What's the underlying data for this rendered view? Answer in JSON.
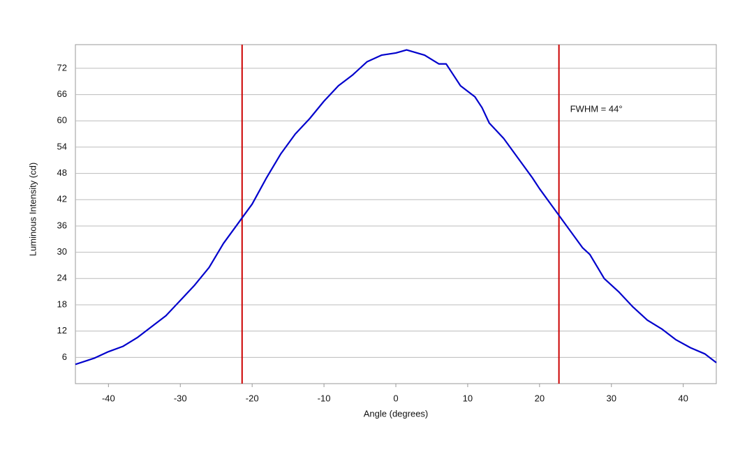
{
  "chart_data": {
    "type": "line",
    "x_label": "Angle (degrees)",
    "y_label": "Luminous Intensity (cd)",
    "x": [
      -44.6,
      -42,
      -40,
      -38,
      -36,
      -34,
      -32,
      -30,
      -28,
      -26,
      -24,
      -22,
      -20,
      -18,
      -16,
      -14,
      -12,
      -10,
      -8,
      -6,
      -4,
      -2,
      0,
      1.5,
      4,
      6,
      7,
      8,
      9,
      11,
      12,
      13,
      15,
      17,
      19,
      20,
      22,
      24,
      26,
      27,
      29,
      31,
      33,
      35,
      37,
      39,
      41,
      43,
      44.6
    ],
    "series": [
      {
        "name": "Intensity",
        "color": "#0000cc",
        "values": [
          4.4,
          5.8,
          7.3,
          8.5,
          10.5,
          13,
          15.5,
          19,
          22.5,
          26.5,
          32,
          36.5,
          41,
          47,
          52.5,
          57,
          60.5,
          64.5,
          68,
          70.5,
          73.5,
          75,
          75.5,
          76.2,
          75,
          73,
          73,
          70.5,
          68,
          65.5,
          63,
          59.5,
          56,
          51.5,
          47,
          44.5,
          40,
          35.5,
          31,
          29.5,
          24,
          21,
          17.5,
          14.5,
          12.5,
          10,
          8.2,
          6.8,
          4.8
        ]
      }
    ],
    "vlines": [
      {
        "x": -21.4,
        "color": "#cc0000"
      },
      {
        "x": 22.7,
        "color": "#cc0000"
      }
    ],
    "annotation": "FWHM = 44°",
    "xlim": [
      -44.6,
      44.6
    ],
    "ylim": [
      0,
      77.4
    ],
    "xticks": [
      -40,
      -30,
      -20,
      -10,
      0,
      10,
      20,
      30,
      40
    ],
    "yticks": [
      6,
      12,
      18,
      24,
      30,
      36,
      42,
      48,
      54,
      60,
      66,
      72
    ],
    "grid": true
  }
}
